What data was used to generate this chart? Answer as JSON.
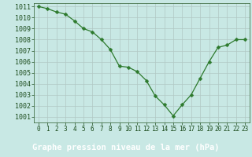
{
  "x": [
    0,
    1,
    2,
    3,
    4,
    5,
    6,
    7,
    8,
    9,
    10,
    11,
    12,
    13,
    14,
    15,
    16,
    17,
    18,
    19,
    20,
    21,
    22,
    23
  ],
  "y": [
    1011.0,
    1010.8,
    1010.5,
    1010.3,
    1009.7,
    1009.0,
    1008.7,
    1008.0,
    1007.1,
    1005.6,
    1005.5,
    1005.1,
    1004.3,
    1002.9,
    1002.1,
    1001.1,
    1002.1,
    1003.0,
    1004.5,
    1006.0,
    1007.3,
    1007.5,
    1008.0,
    1008.0
  ],
  "line_color": "#2d7a2d",
  "marker": "D",
  "marker_size": 2.5,
  "bg_color": "#c8e8e4",
  "grid_color": "#b0c8c4",
  "bottom_bar_color": "#2a5a2a",
  "xlabel": "Graphe pression niveau de la mer (hPa)",
  "xlabel_fontsize": 7.5,
  "xtick_fontsize": 5.5,
  "ytick_fontsize": 6.0,
  "ylim_min": 1000.5,
  "ylim_max": 1011.3,
  "xlim_min": -0.5,
  "xlim_max": 23.5,
  "yticks": [
    1001,
    1002,
    1003,
    1004,
    1005,
    1006,
    1007,
    1008,
    1009,
    1010,
    1011
  ],
  "xtick_labels": [
    "0",
    "1",
    "2",
    "3",
    "4",
    "5",
    "6",
    "7",
    "8",
    "9",
    "10",
    "11",
    "12",
    "13",
    "14",
    "15",
    "16",
    "17",
    "18",
    "19",
    "20",
    "21",
    "22",
    "23"
  ]
}
